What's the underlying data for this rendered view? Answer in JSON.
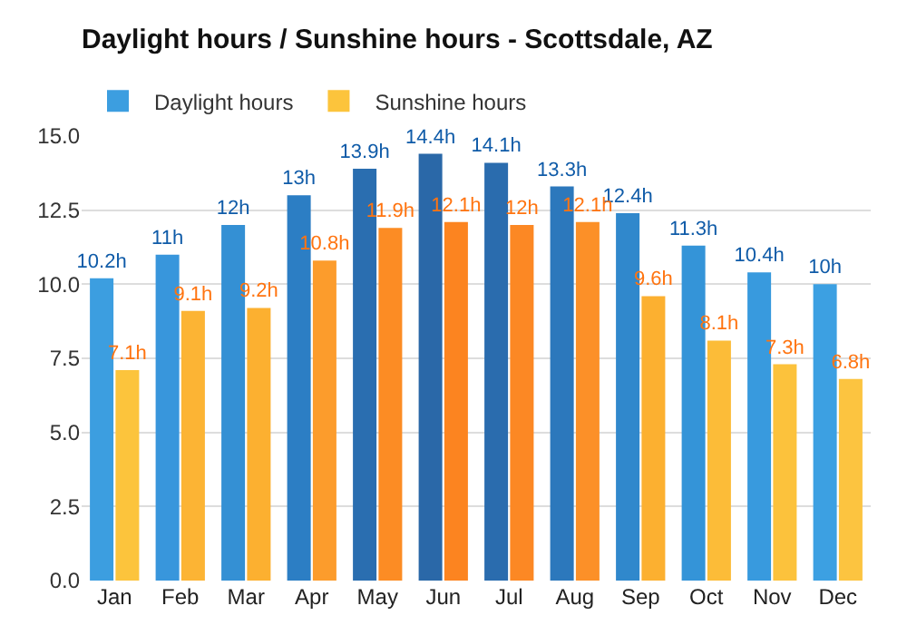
{
  "chart_data": {
    "type": "bar",
    "title": "Daylight hours / Sunshine hours - Scottsdale, AZ",
    "categories": [
      "Jan",
      "Feb",
      "Mar",
      "Apr",
      "May",
      "Jun",
      "Jul",
      "Aug",
      "Sep",
      "Oct",
      "Nov",
      "Dec"
    ],
    "series": [
      {
        "name": "Daylight hours",
        "color": "#0f5ba8",
        "colors": [
          "#3c9ee0",
          "#3896dc",
          "#3490d4",
          "#2c7ec4",
          "#2a6eb0",
          "#2a68a8",
          "#2a6cae",
          "#2c78bc",
          "#3088cc",
          "#3494d8",
          "#389ade",
          "#3ca0e2"
        ],
        "values": [
          10.2,
          11,
          12,
          13,
          13.9,
          14.4,
          14.1,
          13.3,
          12.4,
          11.3,
          10.4,
          10
        ],
        "value_labels": [
          "10.2h",
          "11h",
          "12h",
          "13h",
          "13.9h",
          "14.4h",
          "14.1h",
          "13.3h",
          "12.4h",
          "11.3h",
          "10.4h",
          "10h"
        ]
      },
      {
        "name": "Sunshine hours",
        "color": "#ff7410",
        "colors": [
          "#fcc43c",
          "#fcb434",
          "#fcb030",
          "#fc9c2c",
          "#fc8c24",
          "#fc8420",
          "#fc8824",
          "#fc9028",
          "#fcb030",
          "#fcbc38",
          "#fcc23c",
          "#fcc440"
        ],
        "values": [
          7.1,
          9.1,
          9.2,
          10.8,
          11.9,
          12.1,
          12,
          12.1,
          9.6,
          8.1,
          7.3,
          6.8
        ],
        "value_labels": [
          "7.1h",
          "9.1h",
          "9.2h",
          "10.8h",
          "11.9h",
          "12.1h",
          "12h",
          "12.1h",
          "9.6h",
          "8.1h",
          "7.3h",
          "6.8h"
        ]
      }
    ],
    "ylim": [
      0,
      15
    ],
    "yticks": [
      {
        "value": 0,
        "label": "0.0"
      },
      {
        "value": 2.5,
        "label": "2.5"
      },
      {
        "value": 5,
        "label": "5.0"
      },
      {
        "value": 7.5,
        "label": "7.5"
      },
      {
        "value": 10,
        "label": "10.0"
      },
      {
        "value": 12.5,
        "label": "12.5"
      },
      {
        "value": 15,
        "label": "15.0"
      }
    ],
    "grid": "y",
    "legend": "top left"
  }
}
